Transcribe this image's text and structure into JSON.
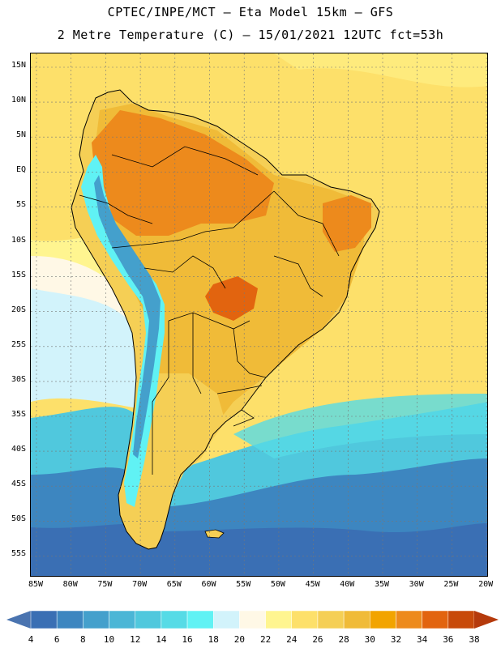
{
  "header": {
    "line1": "CPTEC/INPE/MCT –  Eta Model 15km – GFS",
    "line2": "2 Metre Temperature (C) – 15/01/2021 12UTC fct=53h"
  },
  "map": {
    "lat_labels": [
      "15N",
      "10N",
      "5N",
      "EQ",
      "5S",
      "10S",
      "15S",
      "20S",
      "25S",
      "30S",
      "35S",
      "40S",
      "45S",
      "50S",
      "55S"
    ],
    "lon_labels": [
      "85W",
      "80W",
      "75W",
      "70W",
      "65W",
      "60W",
      "55W",
      "50W",
      "45W",
      "40W",
      "35W",
      "30W",
      "25W",
      "20W"
    ],
    "regions": {
      "continent": "South America",
      "hot_core_1": "Amazon interior",
      "hot_core_2": "Central Brazil / Mato Grosso",
      "andes": "Andes cordillera",
      "patagonia": "Patagonia"
    }
  },
  "colorbar": {
    "labels": [
      "4",
      "6",
      "8",
      "10",
      "12",
      "14",
      "16",
      "18",
      "20",
      "22",
      "24",
      "26",
      "28",
      "30",
      "32",
      "34",
      "36",
      "38"
    ],
    "colors": [
      "#3a6fb4",
      "#3d86c0",
      "#44a0cc",
      "#4bb6d6",
      "#50c8dd",
      "#56dbe6",
      "#60f2f4",
      "#d2f3fb",
      "#fff8e6",
      "#fff590",
      "#fde06a",
      "#f5cf55",
      "#f0bb38",
      "#f2a400",
      "#ed8a1c",
      "#e2640f",
      "#c84a0a"
    ],
    "low_arrow_color": "#4a74b0",
    "high_arrow_color": "#b53a0c"
  },
  "palette": {
    "ocean_warm": "#fde06a",
    "ocean_mid": "#fff590",
    "ocean_cool": "#fff8e6",
    "ocean_cold1": "#50c8dd",
    "ocean_cold2": "#3d86c0",
    "ocean_cold3": "#3a6fb4",
    "land_hot": "#ed8a1c",
    "land_warm": "#f0bb38",
    "land_mild": "#f5cf55",
    "andes": "#60f2f4",
    "andes_dark": "#44a0cc"
  }
}
